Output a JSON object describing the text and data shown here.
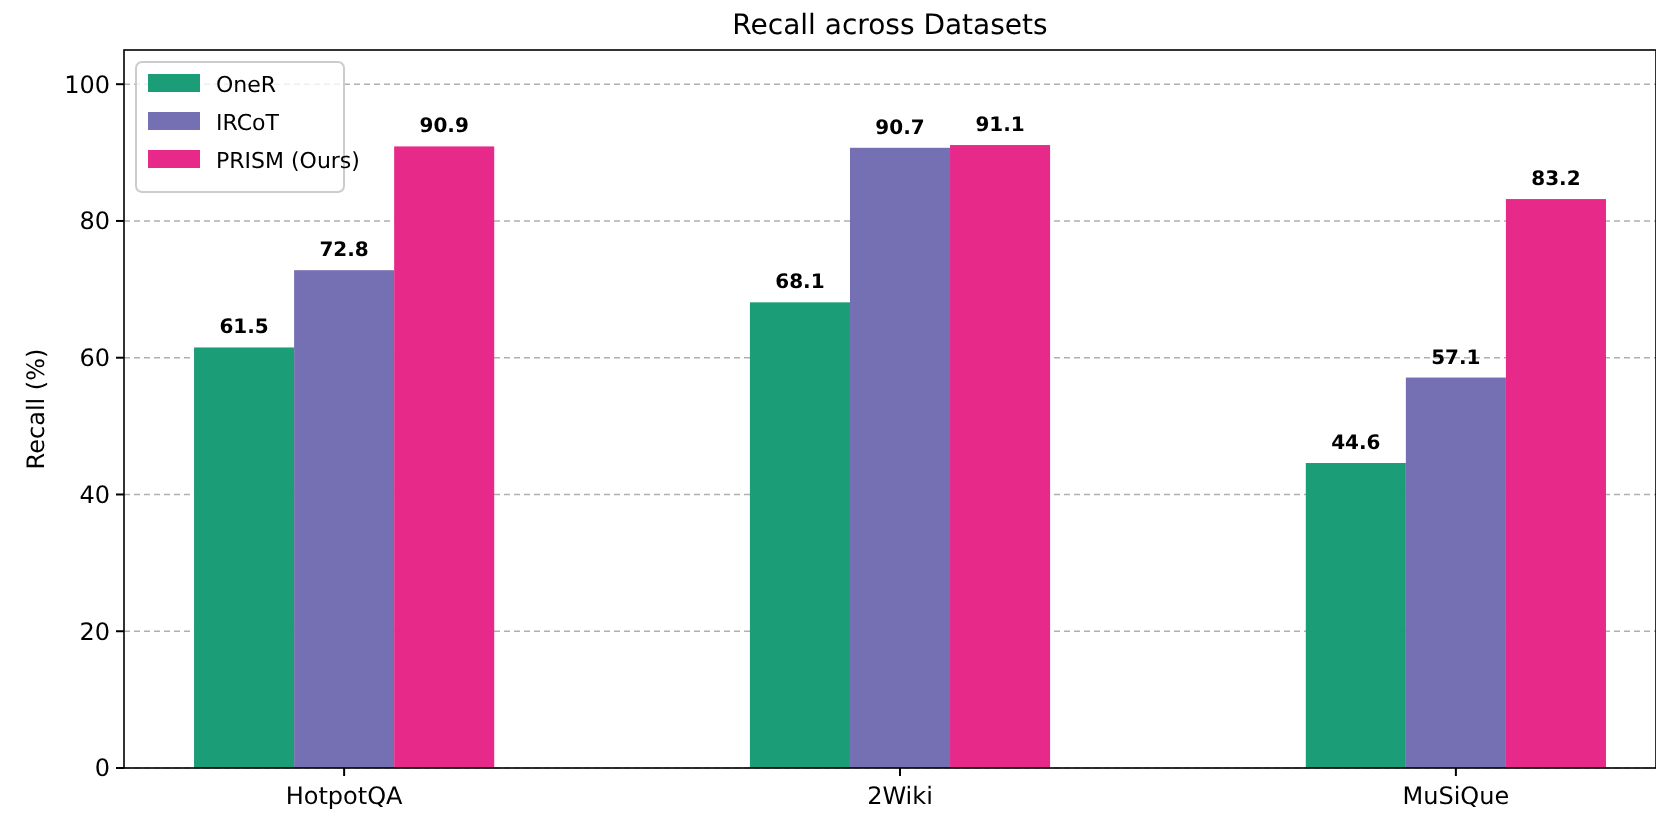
{
  "chart_data": {
    "type": "bar",
    "title": "Recall across Datasets",
    "ylabel": "Recall (%)",
    "categories": [
      "HotpotQA",
      "2Wiki",
      "MuSiQue"
    ],
    "series": [
      {
        "name": "OneR",
        "color": "#1b9e77",
        "values": [
          61.5,
          68.1,
          44.6
        ]
      },
      {
        "name": "IRCoT",
        "color": "#7570b3",
        "values": [
          72.8,
          90.7,
          57.1
        ]
      },
      {
        "name": "PRISM (Ours)",
        "color": "#e7298a",
        "values": [
          90.9,
          91.1,
          83.2
        ]
      }
    ],
    "ylim": [
      0,
      105
    ],
    "yticks": [
      0,
      20,
      40,
      60,
      80,
      100
    ],
    "grid": "y",
    "legend": "top left",
    "data_labels": true
  }
}
